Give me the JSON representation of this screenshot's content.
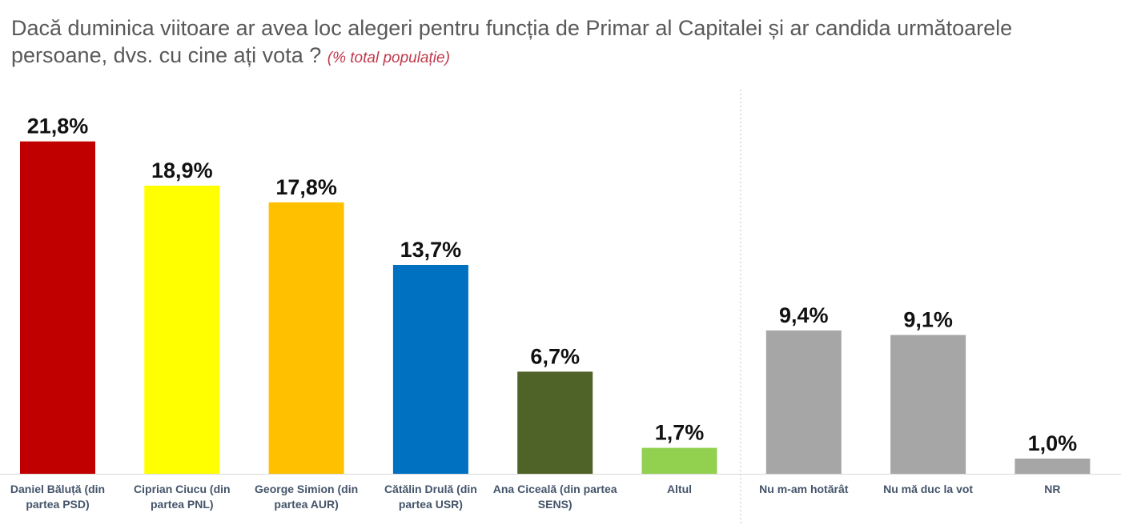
{
  "chart_data": {
    "type": "bar",
    "title": "Dacă duminica viitoare ar avea loc alegeri pentru funcția de Primar al Capitalei și ar candida următoarele persoane, dvs. cu cine ați vota ?",
    "subtitle": "(% total populație)",
    "xlabel": "",
    "ylabel": "",
    "ylim": [
      0,
      23
    ],
    "grid": false,
    "categories": [
      "Daniel Băluță (din partea PSD)",
      "Ciprian Ciucu (din partea PNL)",
      "George Simion (din partea AUR)",
      "Cătălin Drulă (din partea USR)",
      "Ana Ciceală (din partea SENS)",
      "Altul",
      "Nu m-am hotărât",
      "Nu mă duc la vot",
      "NR"
    ],
    "values": [
      21.8,
      18.9,
      17.8,
      13.7,
      6.7,
      1.7,
      9.4,
      9.1,
      1.0
    ],
    "value_labels": [
      "21,8%",
      "18,9%",
      "17,8%",
      "13,7%",
      "6,7%",
      "1,7%",
      "9,4%",
      "9,1%",
      "1,0%"
    ],
    "colors": [
      "#c00000",
      "#ffff00",
      "#ffc000",
      "#0070c0",
      "#4f6228",
      "#92d050",
      "#a6a6a6",
      "#a6a6a6",
      "#a6a6a6"
    ],
    "separator_after_index": 5
  }
}
